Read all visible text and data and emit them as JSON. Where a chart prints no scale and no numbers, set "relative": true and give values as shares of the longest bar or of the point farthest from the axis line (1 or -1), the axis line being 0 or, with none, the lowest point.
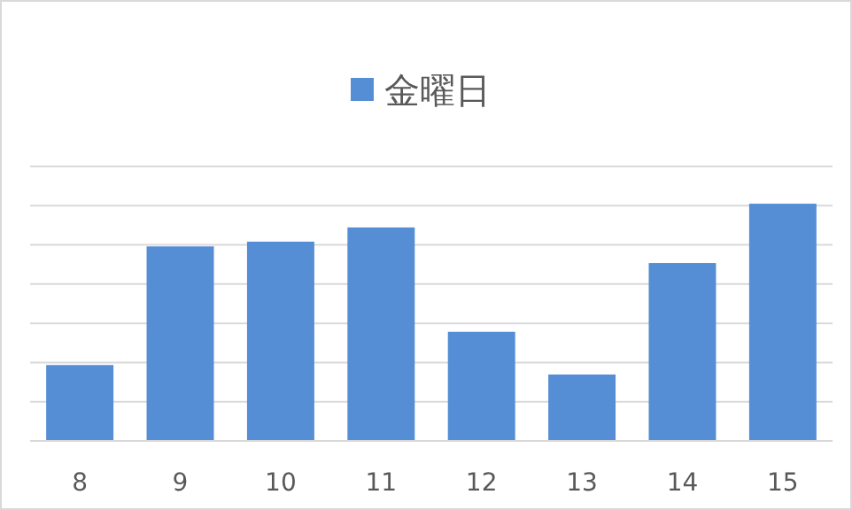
{
  "chart_data": {
    "type": "bar",
    "categories": [
      "8",
      "9",
      "10",
      "11",
      "12",
      "13",
      "14",
      "15"
    ],
    "series": [
      {
        "name": "金曜日",
        "color": "#558ed5",
        "values": [
          0.32,
          0.82,
          0.84,
          0.9,
          0.46,
          0.28,
          0.75,
          1
        ]
      }
    ],
    "relative": true,
    "grid": true,
    "legend": "top"
  }
}
